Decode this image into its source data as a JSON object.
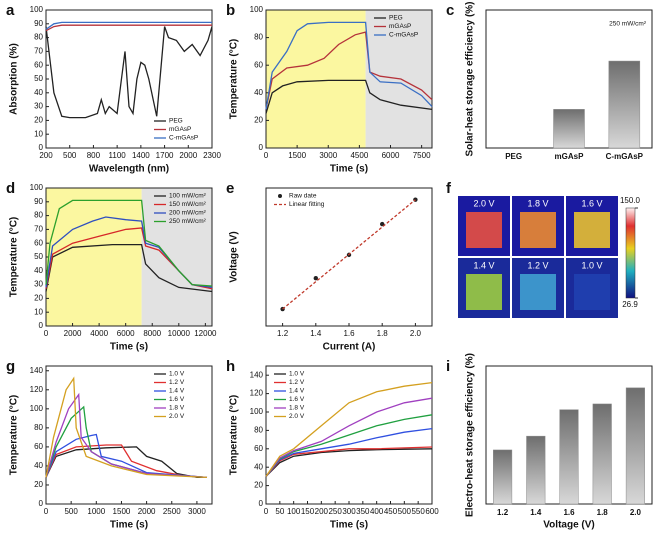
{
  "chart_data": [
    {
      "label": "a",
      "type": "line",
      "xlabel": "Wavelength (nm)",
      "ylabel": "Absorption (%)",
      "xlim": [
        200,
        2300
      ],
      "xticks": [
        200,
        500,
        800,
        1100,
        1400,
        1700,
        2000,
        2300
      ],
      "ylim": [
        0,
        100
      ],
      "yticks": [
        0,
        10,
        20,
        30,
        40,
        50,
        60,
        70,
        80,
        90,
        100
      ],
      "legend": "lower right",
      "x": [
        200,
        300,
        400,
        500,
        700,
        850,
        900,
        950,
        1000,
        1100,
        1150,
        1200,
        1250,
        1300,
        1350,
        1400,
        1450,
        1500,
        1600,
        1700,
        1750,
        1850,
        1950,
        2050,
        2150,
        2250,
        2300
      ],
      "series": [
        {
          "name": "PEG",
          "color": "#222222",
          "values": [
            88,
            40,
            23,
            22,
            22,
            25,
            35,
            25,
            30,
            25,
            48,
            70,
            30,
            25,
            50,
            62,
            60,
            50,
            23,
            88,
            80,
            78,
            70,
            75,
            67,
            78,
            88
          ]
        },
        {
          "name": "mGAsP",
          "color": "#b5323a",
          "values": [
            85,
            88,
            89,
            89,
            89,
            89,
            89,
            89,
            89,
            89,
            89,
            89,
            89,
            89,
            89,
            89,
            89,
            89,
            89,
            89,
            89,
            89,
            89,
            89,
            89,
            89,
            89
          ]
        },
        {
          "name": "C-mGAsP",
          "color": "#3a6fc4",
          "values": [
            86,
            90,
            91,
            91,
            91,
            91,
            91,
            91,
            91,
            91,
            91,
            91,
            91,
            91,
            91,
            91,
            91,
            91,
            91,
            91,
            91,
            91,
            91,
            91,
            91,
            91,
            91
          ]
        }
      ]
    },
    {
      "label": "b",
      "type": "line",
      "xlabel": "Time (s)",
      "ylabel": "Temperature (°C)",
      "xlim": [
        0,
        8000
      ],
      "xticks": [
        0,
        1500,
        3000,
        4500,
        6000,
        7500
      ],
      "ylim": [
        0,
        100
      ],
      "yticks": [
        0,
        20,
        40,
        60,
        80,
        100
      ],
      "legend": "upper right",
      "shaded": [
        {
          "range": [
            0,
            4800
          ],
          "color": "#fbf7a0"
        },
        {
          "range": [
            4800,
            8000
          ],
          "color": "#e2e2e2"
        }
      ],
      "series": [
        {
          "name": "PEG",
          "color": "#222222",
          "x": [
            0,
            300,
            800,
            1500,
            3000,
            4800,
            5000,
            5500,
            6500,
            8000
          ],
          "values": [
            25,
            40,
            45,
            48,
            49,
            49,
            40,
            35,
            31,
            28
          ]
        },
        {
          "name": "mGAsP",
          "color": "#b5323a",
          "x": [
            0,
            300,
            1000,
            2000,
            2800,
            3500,
            4300,
            4800,
            5000,
            5500,
            6500,
            7500,
            8000
          ],
          "values": [
            28,
            50,
            58,
            60,
            65,
            75,
            82,
            84,
            55,
            52,
            50,
            42,
            35
          ]
        },
        {
          "name": "C-mGAsP",
          "color": "#3a6fc4",
          "x": [
            0,
            300,
            1000,
            1500,
            2000,
            3000,
            4800,
            5000,
            5500,
            6500,
            7500,
            8000
          ],
          "values": [
            28,
            55,
            70,
            85,
            90,
            91,
            91,
            55,
            48,
            47,
            38,
            30
          ]
        }
      ]
    },
    {
      "label": "c",
      "type": "bar",
      "ylabel": "Solar-heat storage efficiency (%)",
      "annotation": "250 mW/cm²",
      "ylim": [
        0,
        100
      ],
      "color": "#8a8a8a",
      "categories": [
        "PEG",
        "mGAsP",
        "C-mGAsP"
      ],
      "values": [
        0,
        28,
        63
      ]
    },
    {
      "label": "d",
      "type": "line",
      "xlabel": "Time (s)",
      "ylabel": "Temperature (°C)",
      "xlim": [
        0,
        12500
      ],
      "xticks": [
        0,
        2000,
        4000,
        6000,
        8000,
        10000,
        12000
      ],
      "ylim": [
        0,
        100
      ],
      "yticks": [
        0,
        10,
        20,
        30,
        40,
        50,
        60,
        70,
        80,
        90,
        100
      ],
      "legend": "upper right",
      "shaded": [
        {
          "range": [
            0,
            7200
          ],
          "color": "#fbf7a0"
        },
        {
          "range": [
            7200,
            12500
          ],
          "color": "#e2e2e2"
        }
      ],
      "series": [
        {
          "name": "100 mW/cm²",
          "color": "#222222",
          "x": [
            0,
            500,
            2000,
            5000,
            7200,
            7500,
            8500,
            10000,
            12500
          ],
          "values": [
            25,
            50,
            57,
            59,
            59,
            45,
            35,
            28,
            25
          ]
        },
        {
          "name": "150 mW/cm²",
          "color": "#d62728",
          "x": [
            0,
            500,
            2000,
            4000,
            6000,
            7200,
            7500,
            8500,
            10000,
            11000,
            12500
          ],
          "values": [
            27,
            52,
            60,
            65,
            70,
            71,
            58,
            55,
            40,
            30,
            27
          ]
        },
        {
          "name": "200 mW/cm²",
          "color": "#2f4fbf",
          "x": [
            0,
            500,
            2000,
            3500,
            4500,
            6000,
            7200,
            7500,
            8500,
            10000,
            11000,
            12500
          ],
          "values": [
            28,
            58,
            70,
            76,
            79,
            77,
            76,
            60,
            57,
            40,
            30,
            28
          ]
        },
        {
          "name": "250 mW/cm²",
          "color": "#2ca02c",
          "x": [
            0,
            300,
            1000,
            2000,
            5000,
            7200,
            7500,
            8500,
            10000,
            11000,
            12500
          ],
          "values": [
            30,
            60,
            85,
            91,
            91,
            91,
            62,
            58,
            40,
            30,
            29
          ]
        }
      ]
    },
    {
      "label": "e",
      "type": "line",
      "xlabel": "Current (A)",
      "ylabel": "Voltage (V)",
      "xlim": [
        1.1,
        2.1
      ],
      "xticks": [
        1.2,
        1.4,
        1.6,
        1.8,
        {
          "value": 2,
          "label": "2.0"
        }
      ],
      "ylim": [
        1.0,
        2.3
      ],
      "legend": "upper left",
      "series": [
        {
          "name": "Raw date",
          "color": "#222222",
          "style": "markers",
          "x": [
            1.2,
            1.4,
            1.6,
            1.8,
            2.0
          ],
          "values": [
            1.16,
            1.45,
            1.67,
            1.96,
            2.19
          ]
        },
        {
          "name": "Linear fitting",
          "color": "#c0392b",
          "style": "dashed",
          "x": [
            1.2,
            2.0
          ],
          "values": [
            1.16,
            2.19
          ]
        }
      ]
    },
    {
      "label": "f",
      "type": "image",
      "panels": [
        "2.0 V",
        "1.8 V",
        "1.6 V",
        "1.4 V",
        "1.2 V",
        "1.0 V"
      ],
      "colorbar_lim": [
        26.9,
        150
      ],
      "colorbar_ticks": [
        {
          "value": 150,
          "label": "150.0"
        },
        26.9
      ]
    },
    {
      "label": "g",
      "type": "line",
      "xlabel": "Time (s)",
      "ylabel": "Temperature (°C)",
      "xlim": [
        0,
        3300
      ],
      "xticks": [
        0,
        500,
        1000,
        1500,
        2000,
        2500,
        3000
      ],
      "ylim": [
        0,
        145
      ],
      "yticks": [
        0,
        20,
        40,
        60,
        80,
        100,
        120,
        140
      ],
      "legend": "upper right",
      "series": [
        {
          "name": "1.0 V",
          "color": "#222222",
          "x": [
            0,
            200,
            600,
            1200,
            1800,
            2000,
            2300,
            2600,
            3000,
            3200
          ],
          "values": [
            28,
            50,
            57,
            59,
            60,
            50,
            45,
            32,
            28,
            28
          ]
        },
        {
          "name": "1.2 V",
          "color": "#e03030",
          "x": [
            0,
            200,
            600,
            1200,
            1500,
            1700,
            2200,
            2700,
            3200
          ],
          "values": [
            28,
            52,
            60,
            62,
            62,
            45,
            35,
            30,
            28
          ]
        },
        {
          "name": "1.4 V",
          "color": "#3050e0",
          "x": [
            0,
            200,
            600,
            900,
            1000,
            1100,
            1500,
            2000,
            3200
          ],
          "values": [
            28,
            55,
            68,
            72,
            73,
            50,
            45,
            33,
            28
          ]
        },
        {
          "name": "1.6 V",
          "color": "#20a040",
          "x": [
            0,
            200,
            500,
            750,
            800,
            900,
            1300,
            2000,
            3200
          ],
          "values": [
            28,
            60,
            90,
            102,
            80,
            55,
            42,
            32,
            28
          ]
        },
        {
          "name": "1.8 V",
          "color": "#a040c0",
          "x": [
            0,
            200,
            450,
            650,
            700,
            900,
            1300,
            2000,
            3200
          ],
          "values": [
            28,
            65,
            100,
            115,
            70,
            55,
            42,
            32,
            28
          ]
        },
        {
          "name": "2.0 V",
          "color": "#d4a020",
          "x": [
            0,
            150,
            400,
            550,
            600,
            800,
            1300,
            2000,
            3200
          ],
          "values": [
            28,
            70,
            120,
            132,
            80,
            50,
            40,
            31,
            28
          ]
        }
      ]
    },
    {
      "label": "h",
      "type": "line",
      "xlabel": "Time (s)",
      "ylabel": "Temperature (°C)",
      "xlim": [
        0,
        600
      ],
      "xticks": [
        0,
        50,
        100,
        150,
        200,
        250,
        300,
        350,
        400,
        450,
        500,
        550,
        600
      ],
      "ylim": [
        0,
        150
      ],
      "yticks": [
        0,
        20,
        40,
        60,
        80,
        100,
        120,
        140
      ],
      "legend": "upper left",
      "series": [
        {
          "name": "1.0 V",
          "color": "#222222",
          "x": [
            0,
            50,
            100,
            200,
            300,
            400,
            600
          ],
          "values": [
            30,
            45,
            52,
            56,
            58,
            59,
            60
          ]
        },
        {
          "name": "1.2 V",
          "color": "#e03030",
          "x": [
            0,
            50,
            100,
            200,
            300,
            400,
            600
          ],
          "values": [
            30,
            47,
            54,
            57,
            60,
            60,
            62
          ]
        },
        {
          "name": "1.4 V",
          "color": "#3050e0",
          "x": [
            0,
            50,
            100,
            200,
            300,
            400,
            500,
            600
          ],
          "values": [
            30,
            48,
            55,
            60,
            65,
            72,
            78,
            82
          ]
        },
        {
          "name": "1.6 V",
          "color": "#20a040",
          "x": [
            0,
            50,
            100,
            200,
            300,
            400,
            500,
            600
          ],
          "values": [
            30,
            49,
            57,
            65,
            75,
            85,
            92,
            97
          ]
        },
        {
          "name": "1.8 V",
          "color": "#a040c0",
          "x": [
            0,
            50,
            100,
            200,
            300,
            400,
            500,
            600
          ],
          "values": [
            30,
            50,
            58,
            68,
            85,
            100,
            110,
            115
          ]
        },
        {
          "name": "2.0 V",
          "color": "#d4a020",
          "x": [
            0,
            50,
            100,
            200,
            300,
            400,
            500,
            600
          ],
          "values": [
            30,
            52,
            60,
            85,
            110,
            122,
            128,
            132
          ]
        }
      ]
    },
    {
      "label": "i",
      "type": "bar",
      "xlabel": "Voltage (V)",
      "ylabel": "Electro-heat storage efficiency (%)",
      "ylim": [
        0,
        60
      ],
      "color": "#8a8a8a",
      "categories": [
        "1.2",
        "1.4",
        "1.6",
        "1.8",
        "2.0"
      ],
      "values": [
        23.5,
        29.5,
        41,
        43.5,
        50.5
      ]
    }
  ]
}
